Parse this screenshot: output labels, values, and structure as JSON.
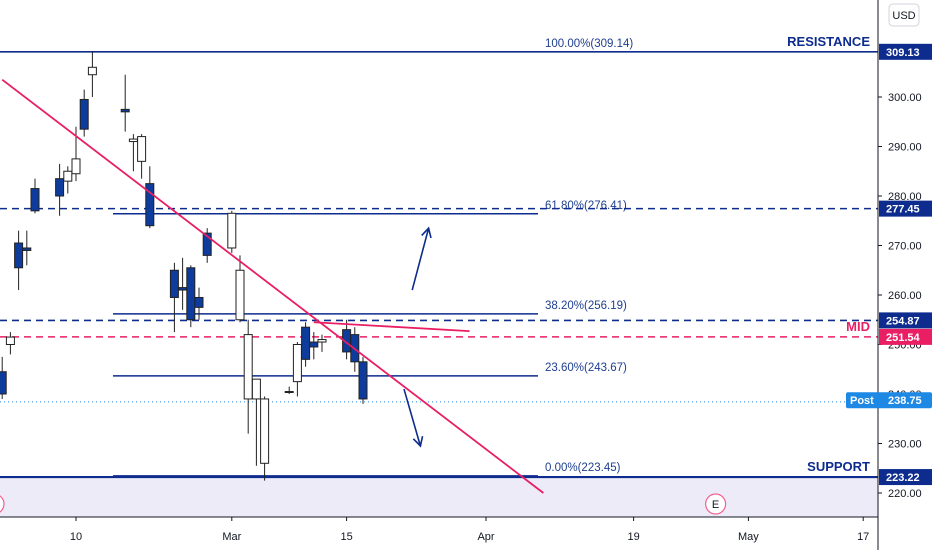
{
  "currency_button": "USD",
  "colors": {
    "blue_line": "#0d2c8e",
    "pink": "#e91e63",
    "accent_blue": "#1e88e5",
    "candle_down": "#0d3c9c",
    "candle_up": "#ffffff",
    "support_zone": "#ecebf7"
  },
  "chart_data": {
    "type": "candlestick",
    "title": "",
    "xlabel": "",
    "ylabel": "",
    "ylim": [
      213,
      312
    ],
    "y_ticks": [
      220,
      230,
      240,
      250,
      260,
      270,
      280,
      290,
      300
    ],
    "y_tick_labels": [
      "220.00",
      "230.00",
      "240.00",
      "250.00",
      "260.00",
      "270.00",
      "280.00",
      "290.00",
      "300.00"
    ],
    "x_range": [
      "2021-02-02",
      "2021-05-17"
    ],
    "x_ticks": [
      {
        "date": "2021-02-10",
        "label": "10"
      },
      {
        "date": "2021-03-01",
        "label": "Mar"
      },
      {
        "date": "2021-03-15",
        "label": "15"
      },
      {
        "date": "2021-04-01",
        "label": "Apr"
      },
      {
        "date": "2021-04-19",
        "label": "19"
      },
      {
        "date": "2021-05-03",
        "label": "May"
      },
      {
        "date": "2021-05-17",
        "label": "17"
      }
    ],
    "candles": [
      {
        "date": "2021-02-01",
        "o": 244.5,
        "h": 247.5,
        "l": 239.0,
        "c": 240.0
      },
      {
        "date": "2021-02-02",
        "o": 250.0,
        "h": 252.5,
        "l": 248.0,
        "c": 251.5
      },
      {
        "date": "2021-02-03",
        "o": 270.5,
        "h": 273.0,
        "l": 261.0,
        "c": 265.5
      },
      {
        "date": "2021-02-04",
        "o": 269.5,
        "h": 273.0,
        "l": 266.0,
        "c": 269.0
      },
      {
        "date": "2021-02-05",
        "o": 281.5,
        "h": 283.5,
        "l": 276.5,
        "c": 277.0
      },
      {
        "date": "2021-02-08",
        "o": 283.5,
        "h": 286.5,
        "l": 276.0,
        "c": 280.0
      },
      {
        "date": "2021-02-09",
        "o": 283.0,
        "h": 286.0,
        "l": 280.5,
        "c": 285.0
      },
      {
        "date": "2021-02-10",
        "o": 284.5,
        "h": 294.0,
        "l": 283.0,
        "c": 287.5
      },
      {
        "date": "2021-02-11",
        "o": 299.5,
        "h": 301.5,
        "l": 292.0,
        "c": 293.5
      },
      {
        "date": "2021-02-12",
        "o": 304.5,
        "h": 309.2,
        "l": 300.0,
        "c": 306.0
      },
      {
        "date": "2021-02-16",
        "o": 297.5,
        "h": 304.5,
        "l": 293.0,
        "c": 297.0
      },
      {
        "date": "2021-02-17",
        "o": 291.0,
        "h": 292.5,
        "l": 285.0,
        "c": 291.5
      },
      {
        "date": "2021-02-18",
        "o": 287.0,
        "h": 292.5,
        "l": 283.5,
        "c": 292.0
      },
      {
        "date": "2021-02-19",
        "o": 282.5,
        "h": 286.0,
        "l": 273.5,
        "c": 274.0
      },
      {
        "date": "2021-02-22",
        "o": 265.0,
        "h": 266.5,
        "l": 252.5,
        "c": 259.5
      },
      {
        "date": "2021-02-23",
        "o": 261.5,
        "h": 267.5,
        "l": 257.0,
        "c": 261.0
      },
      {
        "date": "2021-02-24",
        "o": 265.5,
        "h": 266.0,
        "l": 253.5,
        "c": 255.0
      },
      {
        "date": "2021-02-25",
        "o": 259.5,
        "h": 261.5,
        "l": 255.0,
        "c": 257.5
      },
      {
        "date": "2021-02-26",
        "o": 272.5,
        "h": 273.5,
        "l": 266.5,
        "c": 268.0
      },
      {
        "date": "2021-03-01",
        "o": 269.5,
        "h": 277.0,
        "l": 268.5,
        "c": 276.5
      },
      {
        "date": "2021-03-02",
        "o": 255.0,
        "h": 268.0,
        "l": 254.5,
        "c": 265.0
      },
      {
        "date": "2021-03-03",
        "o": 239.0,
        "h": 255.0,
        "l": 232.0,
        "c": 252.0
      },
      {
        "date": "2021-03-04",
        "o": 239.0,
        "h": 242.5,
        "l": 225.5,
        "c": 243.0
      },
      {
        "date": "2021-03-05",
        "o": 226.0,
        "h": 239.5,
        "l": 222.5,
        "c": 239.0
      },
      {
        "date": "2021-03-08",
        "o": 240.5,
        "h": 241.5,
        "l": 240.0,
        "c": 240.5
      },
      {
        "date": "2021-03-09",
        "o": 242.5,
        "h": 250.5,
        "l": 239.5,
        "c": 250.0
      },
      {
        "date": "2021-03-10",
        "o": 253.5,
        "h": 254.5,
        "l": 245.5,
        "c": 247.0
      },
      {
        "date": "2021-03-11",
        "o": 250.5,
        "h": 252.5,
        "l": 247.0,
        "c": 249.5
      },
      {
        "date": "2021-03-12",
        "o": 250.5,
        "h": 252.0,
        "l": 248.5,
        "c": 251.0
      },
      {
        "date": "2021-03-15",
        "o": 253.0,
        "h": 255.0,
        "l": 247.0,
        "c": 248.5
      },
      {
        "date": "2021-03-16",
        "o": 252.0,
        "h": 253.5,
        "l": 244.5,
        "c": 246.5
      },
      {
        "date": "2021-03-17",
        "o": 246.5,
        "h": 247.5,
        "l": 238.0,
        "c": 239.0
      }
    ],
    "fibonacci": [
      {
        "level": "100.00%",
        "value": 309.14,
        "label": "100.00%(309.14)"
      },
      {
        "level": "61.80%",
        "value": 276.41,
        "label": "61.80%(276.41)"
      },
      {
        "level": "38.20%",
        "value": 256.19,
        "label": "38.20%(256.19)"
      },
      {
        "level": "23.60%",
        "value": 243.67,
        "label": "23.60%(243.67)"
      },
      {
        "level": "0.00%",
        "value": 223.45,
        "label": "0.00%(223.45)"
      }
    ],
    "horizontal_levels": [
      {
        "name": "RESISTANCE",
        "value": 309.13,
        "label": "309.13",
        "style": "solid"
      },
      {
        "name": "",
        "value": 277.45,
        "label": "277.45",
        "style": "dashed"
      },
      {
        "name": "",
        "value": 254.87,
        "label": "254.87",
        "style": "dashed"
      },
      {
        "name": "MID",
        "value": 251.54,
        "label": "251.54",
        "style": "dashed"
      },
      {
        "name": "SUPPORT",
        "value": 223.22,
        "label": "223.22",
        "style": "solid"
      }
    ],
    "trendline": {
      "from": {
        "date": "2021-02-01",
        "value": 303.5
      },
      "to": {
        "date": "2021-04-08",
        "value": 220.0
      }
    },
    "trendline_short": {
      "from": {
        "date": "2021-03-11",
        "value": 254.5
      },
      "to": {
        "date": "2021-03-30",
        "value": 252.7
      }
    },
    "arrows": [
      {
        "direction": "up",
        "from": {
          "date": "2021-03-23",
          "value": 261.0
        },
        "to": {
          "date": "2021-03-25",
          "value": 273.5
        }
      },
      {
        "direction": "down",
        "from": {
          "date": "2021-03-22",
          "value": 241.0
        },
        "to": {
          "date": "2021-03-24",
          "value": 229.5
        }
      }
    ],
    "last_price": {
      "label": "Post",
      "value": 238.75,
      "display": "238.75"
    },
    "current_close": {
      "value": 238.41,
      "display": "238.41"
    },
    "event_markers": [
      {
        "date": "2021-01-31",
        "label": "E"
      },
      {
        "date": "2021-04-29",
        "label": "E"
      }
    ]
  }
}
